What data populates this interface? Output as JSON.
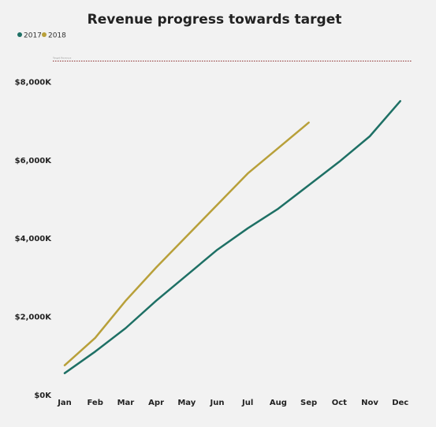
{
  "chart_data": {
    "type": "line",
    "title": "Revenue progress towards target",
    "xlabel": "",
    "ylabel": "",
    "categories": [
      "Jan",
      "Feb",
      "Mar",
      "Apr",
      "May",
      "Jun",
      "Jul",
      "Aug",
      "Sep",
      "Oct",
      "Nov",
      "Dec"
    ],
    "ylim": [
      0,
      8500
    ],
    "yticks": [
      0,
      2000,
      4000,
      6000,
      8000
    ],
    "ytick_labels": [
      "$0K",
      "$2,000K",
      "$4,000K",
      "$6,000K",
      "$8,000K"
    ],
    "grid": false,
    "legend_position": "top-left",
    "series": [
      {
        "name": "2017",
        "color": "#1e7065",
        "values": [
          550,
          1100,
          1700,
          2400,
          3050,
          3700,
          4250,
          4750,
          5350,
          5950,
          6600,
          7500
        ]
      },
      {
        "name": "2018",
        "color": "#b8a03a",
        "values": [
          750,
          1450,
          2400,
          3250,
          4050,
          4850,
          5650,
          6300,
          6950,
          null,
          null,
          null
        ]
      }
    ],
    "target": {
      "value": 8500,
      "color": "#8b2b2b",
      "label": "Target Revenue"
    }
  }
}
